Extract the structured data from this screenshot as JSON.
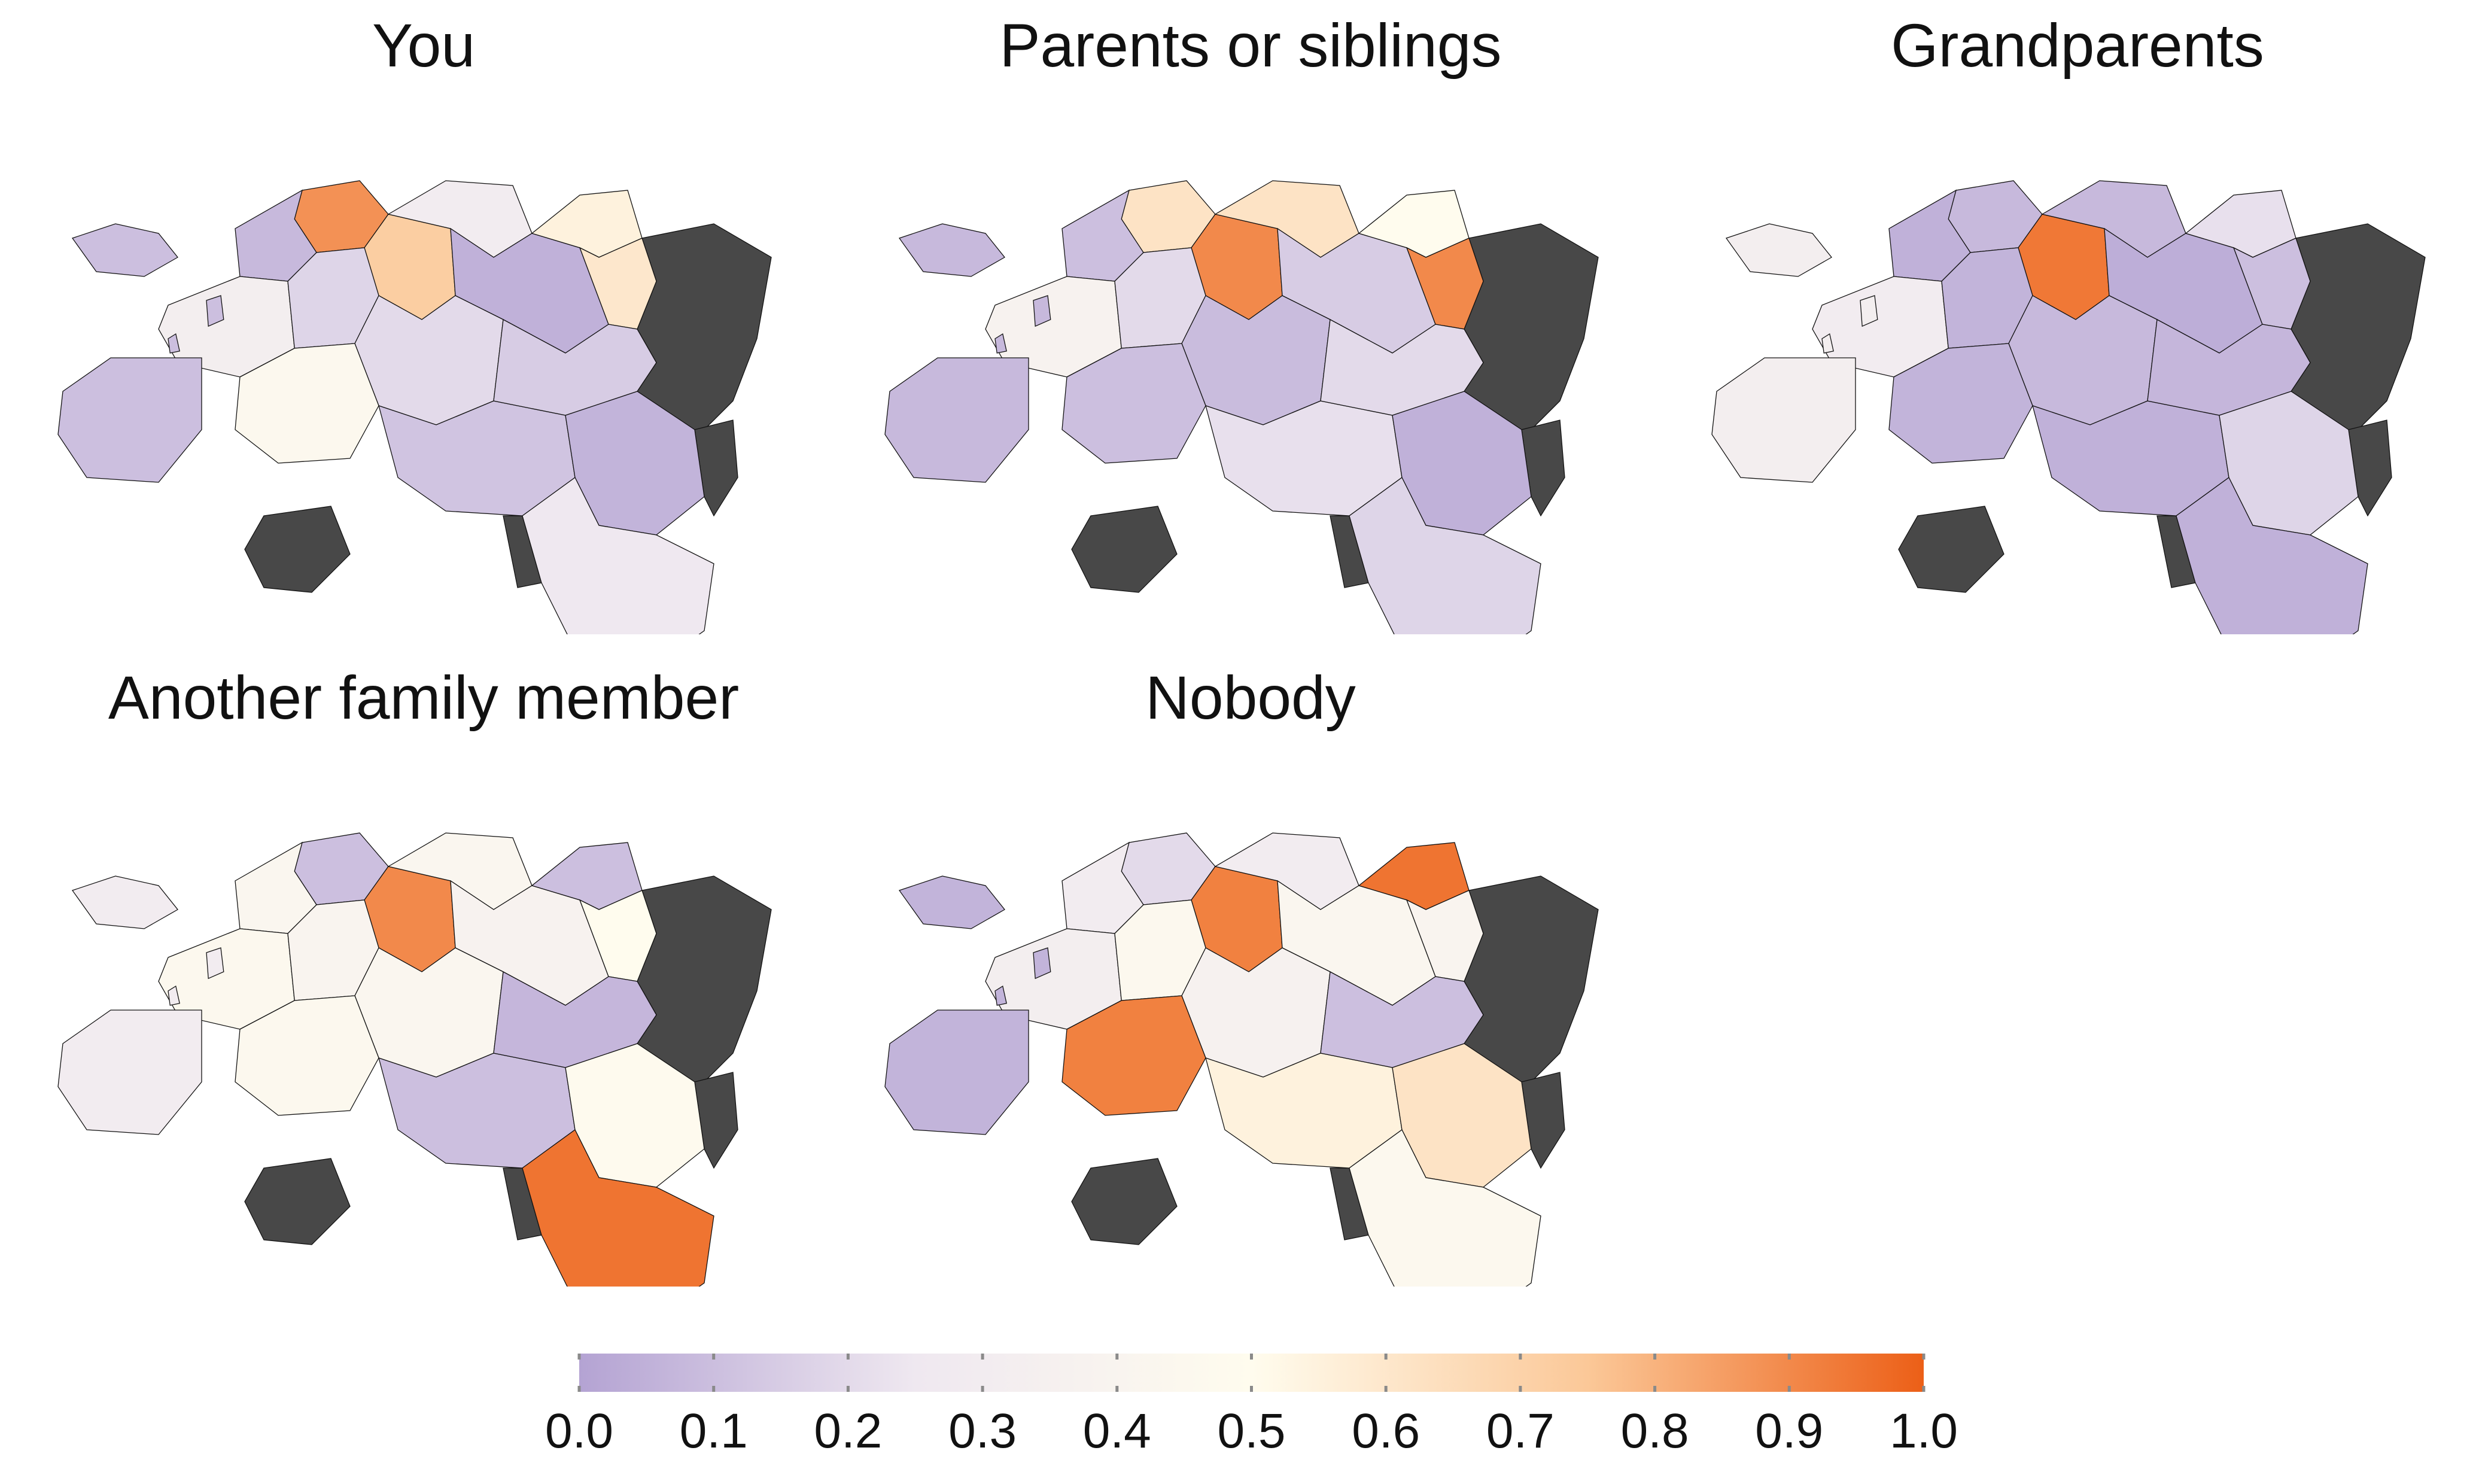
{
  "panels": [
    {
      "title": "You"
    },
    {
      "title": "Parents or siblings"
    },
    {
      "title": "Grandparents"
    },
    {
      "title": "Another family member"
    },
    {
      "title": "Nobody"
    }
  ],
  "colorbar": {
    "ticks": [
      "0.0",
      "0.1",
      "0.2",
      "0.3",
      "0.4",
      "0.5",
      "0.6",
      "0.7",
      "0.8",
      "0.9",
      "1.0"
    ],
    "stops": [
      "#b4a3d3",
      "#efe8f0",
      "#fffcee",
      "#fbc898",
      "#ec5f17"
    ],
    "missing_color": "#484848"
  },
  "maps": [
    [
      0.88,
      0.72,
      0.08,
      0.32,
      0.18,
      0.3,
      0.05,
      0.55,
      0.6,
      0.2,
      0.45,
      0.12,
      0.06,
      0.25,
      0.15,
      0.1
    ],
    [
      0.62,
      0.9,
      0.1,
      0.38,
      0.2,
      0.62,
      0.15,
      0.5,
      0.9,
      0.09,
      0.1,
      0.22,
      0.05,
      0.18,
      0.2,
      0.08
    ],
    [
      0.08,
      0.94,
      0.05,
      0.3,
      0.06,
      0.08,
      0.04,
      0.22,
      0.1,
      0.08,
      0.06,
      0.05,
      0.18,
      0.05,
      0.07,
      0.32
    ],
    [
      0.1,
      0.9,
      0.42,
      0.45,
      0.4,
      0.42,
      0.38,
      0.1,
      0.5,
      0.42,
      0.45,
      0.1,
      0.48,
      0.95,
      0.07,
      0.3
    ],
    [
      0.2,
      0.92,
      0.3,
      0.32,
      0.45,
      0.3,
      0.42,
      0.95,
      0.4,
      0.36,
      0.92,
      0.55,
      0.62,
      0.45,
      0.1,
      0.06
    ]
  ]
}
